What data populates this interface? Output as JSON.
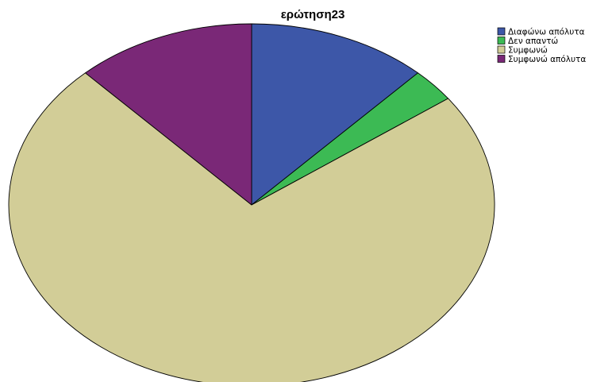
{
  "chart_data": {
    "type": "pie",
    "title": "ερώτηση23",
    "series": [
      {
        "name": "Διαφώνω απόλυτα",
        "value": 12,
        "color": "#3d57a8"
      },
      {
        "name": "Δεν απαντώ",
        "value": 3,
        "color": "#3cba54"
      },
      {
        "name": "Συμφωνώ",
        "value": 73,
        "color": "#d2cd97"
      },
      {
        "name": "Συμφωνώ απόλυτα",
        "value": 12,
        "color": "#7a2877"
      }
    ],
    "start": "12 o'clock",
    "direction": "clockwise",
    "legend_position": "top-right"
  }
}
